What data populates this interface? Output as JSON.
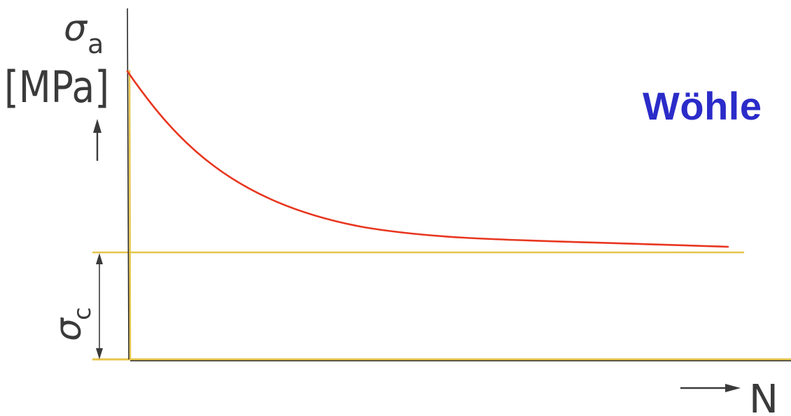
{
  "title": "Wöhle",
  "y_symbol": "σ",
  "y_subscript": "a",
  "y_unit": "[MPa]",
  "endurance_symbol": "σ",
  "endurance_subscript": "c",
  "x_label": "N",
  "colors": {
    "curve": "#e8361f",
    "axis": "#2a2a2a",
    "guide": "#e6c44a",
    "title": "#2b2bc9",
    "text": "#3a3a3a"
  }
}
